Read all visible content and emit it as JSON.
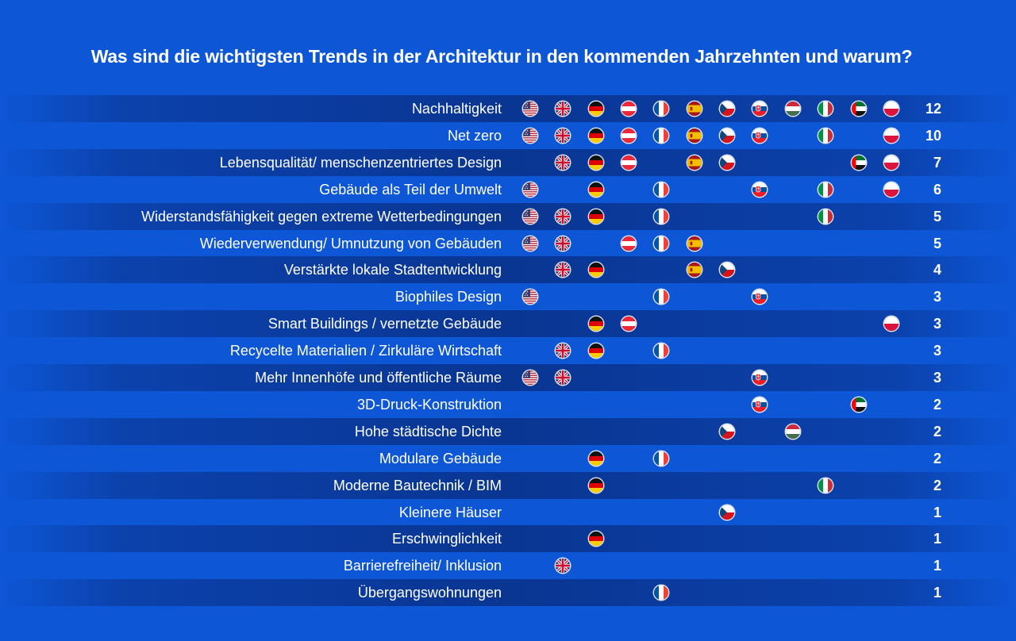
{
  "title": "Was sind die wichtigsten Trends in der Architektur in den kommenden Jahrzehnten und warum?",
  "countries": [
    "us",
    "uk",
    "de",
    "at",
    "fr",
    "es",
    "cz",
    "sk",
    "hu",
    "it",
    "ae",
    "pl"
  ],
  "chart_data": {
    "type": "table",
    "columns": [
      "us",
      "uk",
      "de",
      "at",
      "fr",
      "es",
      "cz",
      "sk",
      "hu",
      "it",
      "ae",
      "pl"
    ],
    "rows": [
      {
        "label": "Nachhaltigkeit",
        "count": "12",
        "flags": [
          "us",
          "uk",
          "de",
          "at",
          "fr",
          "es",
          "cz",
          "sk",
          "hu",
          "it",
          "ae",
          "pl"
        ]
      },
      {
        "label": "Net zero",
        "count": "10",
        "flags": [
          "us",
          "uk",
          "de",
          "at",
          "fr",
          "es",
          "cz",
          "sk",
          "it",
          "pl"
        ]
      },
      {
        "label": "Lebensqualität/ menschenzentriertes Design",
        "count": "7",
        "flags": [
          "uk",
          "de",
          "at",
          "es",
          "cz",
          "ae",
          "pl"
        ]
      },
      {
        "label": "Gebäude als Teil der Umwelt",
        "count": "6",
        "flags": [
          "us",
          "de",
          "fr",
          "sk",
          "it",
          "pl"
        ]
      },
      {
        "label": "Widerstandsfähigkeit gegen extreme Wetterbedingungen",
        "count": "5",
        "flags": [
          "us",
          "uk",
          "de",
          "fr",
          "it"
        ]
      },
      {
        "label": "Wiederverwendung/ Umnutzung von Gebäuden",
        "count": "5",
        "flags": [
          "us",
          "uk",
          "at",
          "fr",
          "es"
        ]
      },
      {
        "label": "Verstärkte lokale Stadtentwicklung",
        "count": "4",
        "flags": [
          "uk",
          "de",
          "es",
          "cz"
        ]
      },
      {
        "label": "Biophiles Design",
        "count": "3",
        "flags": [
          "us",
          "fr",
          "sk"
        ]
      },
      {
        "label": "Smart Buildings / vernetzte Gebäude",
        "count": "3",
        "flags": [
          "de",
          "at",
          "pl"
        ]
      },
      {
        "label": "Recycelte Materialien / Zirkuläre Wirtschaft",
        "count": "3",
        "flags": [
          "uk",
          "de",
          "fr"
        ]
      },
      {
        "label": "Mehr Innenhöfe und öffentliche Räume",
        "count": "3",
        "flags": [
          "us",
          "uk",
          "sk"
        ]
      },
      {
        "label": "3D-Druck-Konstruktion",
        "count": "2",
        "flags": [
          "sk",
          "ae"
        ]
      },
      {
        "label": "Hohe städtische Dichte",
        "count": "2",
        "flags": [
          "cz",
          "hu"
        ]
      },
      {
        "label": "Modulare Gebäude",
        "count": "2",
        "flags": [
          "de",
          "fr"
        ]
      },
      {
        "label": "Moderne Bautechnik / BIM",
        "count": "2",
        "flags": [
          "de",
          "it"
        ]
      },
      {
        "label": "Kleinere Häuser",
        "count": "1",
        "flags": [
          "cz"
        ]
      },
      {
        "label": "Erschwinglichkeit",
        "count": "1",
        "flags": [
          "de"
        ]
      },
      {
        "label": "Barrierefreiheit/ Inklusion",
        "count": "1",
        "flags": [
          "uk"
        ]
      },
      {
        "label": "Übergangswohnungen",
        "count": "1",
        "flags": [
          "fr"
        ]
      }
    ]
  }
}
